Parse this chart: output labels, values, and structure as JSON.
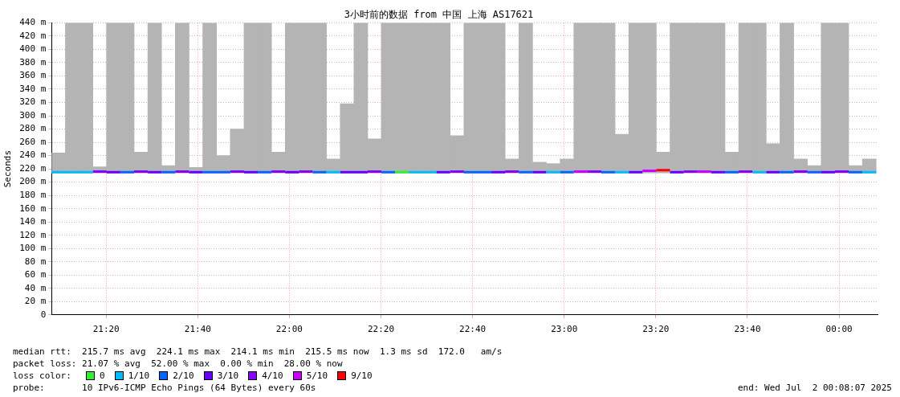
{
  "chart_data": {
    "type": "bar",
    "title": "3小时前的数据 from 中国 上海 AS17621",
    "ylabel": "Seconds",
    "xlim": [
      21.135,
      24.14
    ],
    "xticks": [
      {
        "value": 21.3333,
        "label": "21:20"
      },
      {
        "value": 21.6667,
        "label": "21:40"
      },
      {
        "value": 22,
        "label": "22:00"
      },
      {
        "value": 22.3333,
        "label": "22:20"
      },
      {
        "value": 22.6667,
        "label": "22:40"
      },
      {
        "value": 23,
        "label": "23:00"
      },
      {
        "value": 23.3333,
        "label": "23:20"
      },
      {
        "value": 23.6667,
        "label": "23:40"
      },
      {
        "value": 24,
        "label": "00:00"
      }
    ],
    "ylim": [
      0,
      440
    ],
    "yticks": [
      0,
      {
        "value": 20,
        "label": "20 m"
      },
      {
        "value": 40,
        "label": "40 m"
      },
      {
        "value": 60,
        "label": "60 m"
      },
      {
        "value": 80,
        "label": "80 m"
      },
      {
        "value": 100,
        "label": "100 m"
      },
      {
        "value": 120,
        "label": "120 m"
      },
      {
        "value": 140,
        "label": "140 m"
      },
      {
        "value": 160,
        "label": "160 m"
      },
      {
        "value": 180,
        "label": "180 m"
      },
      {
        "value": 200,
        "label": "200 m"
      },
      {
        "value": 220,
        "label": "220 m"
      },
      {
        "value": 240,
        "label": "240 m"
      },
      {
        "value": 260,
        "label": "260 m"
      },
      {
        "value": 280,
        "label": "280 m"
      },
      {
        "value": 300,
        "label": "300 m"
      },
      {
        "value": 320,
        "label": "320 m"
      },
      {
        "value": 340,
        "label": "340 m"
      },
      {
        "value": 360,
        "label": "360 m"
      },
      {
        "value": 380,
        "label": "380 m"
      },
      {
        "value": 400,
        "label": "400 m"
      },
      {
        "value": 420,
        "label": "420 m"
      },
      {
        "value": 440,
        "label": "440 m"
      }
    ],
    "grid": true,
    "legend": "bottom",
    "legend_title": "loss color:",
    "series": [
      {
        "color": "#b4b4b4",
        "x": [
          21.16,
          21.21,
          21.26,
          21.31,
          21.36,
          21.41,
          21.46,
          21.51,
          21.56,
          21.61,
          21.66,
          21.71,
          21.76,
          21.81,
          21.86,
          21.91,
          21.96,
          22.01,
          22.06,
          22.11,
          22.16,
          22.21,
          22.26,
          22.31,
          22.36,
          22.41,
          22.46,
          22.51,
          22.56,
          22.61,
          22.66,
          22.71,
          22.76,
          22.81,
          22.86,
          22.91,
          22.96,
          23.01,
          23.06,
          23.11,
          23.16,
          23.21,
          23.26,
          23.31,
          23.36,
          23.41,
          23.46,
          23.51,
          23.56,
          23.61,
          23.66,
          23.71,
          23.76,
          23.81,
          23.86,
          23.91,
          23.96,
          24.01,
          24.06,
          24.11
        ],
        "base": [
          214,
          214,
          214,
          214,
          214,
          214,
          214,
          214,
          214,
          214,
          214,
          214,
          214,
          214,
          214,
          214,
          214,
          214,
          214,
          214,
          214,
          214,
          214,
          214,
          214,
          214,
          214,
          214,
          214,
          214,
          214,
          214,
          214,
          214,
          214,
          214,
          214,
          214,
          214,
          214,
          214,
          214,
          214,
          214,
          214,
          214,
          214,
          214,
          214,
          214,
          214,
          214,
          214,
          214,
          214,
          214,
          214,
          214,
          214,
          214
        ],
        "values": [
          30,
          226,
          226,
          9,
          226,
          226,
          31,
          226,
          11,
          226,
          8,
          226,
          26,
          66,
          226,
          226,
          31,
          226,
          226,
          226,
          21,
          104,
          226,
          51,
          226,
          226,
          226,
          226,
          226,
          56,
          226,
          226,
          226,
          21,
          226,
          16,
          14,
          21,
          226,
          226,
          226,
          58,
          226,
          226,
          31,
          226,
          226,
          226,
          226,
          31,
          226,
          226,
          44,
          226,
          21,
          11,
          226,
          226,
          11,
          21
        ]
      },
      {
        "type": "line",
        "name": "0",
        "color": "#33ee33",
        "x": [
          22.385,
          22.435
        ],
        "values": [
          215,
          215
        ]
      },
      {
        "type": "line",
        "name": "1/10",
        "color": "#00bbff",
        "x": [
          21.135,
          21.285,
          22.135,
          22.185,
          22.435,
          22.535,
          22.935,
          22.985,
          23.185,
          23.235,
          23.685,
          23.735,
          24.085,
          24.135
        ],
        "values": [
          215,
          215,
          215,
          215,
          215,
          215,
          215,
          215,
          215,
          215,
          215,
          215,
          215,
          215
        ]
      },
      {
        "type": "line",
        "name": "2/10",
        "color": "#0066ff",
        "x": [
          21.385,
          21.435,
          21.535,
          21.585,
          21.685,
          21.785,
          21.885,
          21.935,
          22.085,
          22.135,
          22.335,
          22.385,
          22.635,
          22.735,
          22.835,
          22.885,
          22.985,
          23.035,
          23.135,
          23.185,
          23.585,
          23.635,
          23.785,
          23.835,
          23.885,
          23.935,
          24.035,
          24.085
        ],
        "values": [
          215,
          215,
          215,
          215,
          215,
          215,
          215,
          215,
          215,
          215,
          215,
          215,
          215,
          215,
          215,
          215,
          215,
          215,
          215,
          215,
          215,
          215,
          215,
          215,
          215,
          215,
          215,
          215
        ]
      },
      {
        "type": "line",
        "name": "3/10",
        "color": "#6600ff",
        "x": [
          21.335,
          21.385,
          21.485,
          21.535,
          21.635,
          21.685,
          21.835,
          21.885,
          21.985,
          22.035,
          22.185,
          22.285,
          22.535,
          22.585,
          22.735,
          22.785,
          22.885,
          22.935,
          23.235,
          23.285,
          23.385,
          23.435,
          23.535,
          23.585,
          23.735,
          23.785,
          23.935,
          23.985
        ],
        "values": [
          215,
          215,
          215,
          215,
          215,
          215,
          215,
          215,
          215,
          215,
          215,
          215,
          215,
          215,
          215,
          215,
          215,
          215,
          215,
          215,
          215,
          215,
          215,
          215,
          215,
          215,
          215,
          215
        ]
      },
      {
        "type": "line",
        "name": "4/10",
        "color": "#8800ff",
        "x": [
          21.285,
          21.335,
          21.435,
          21.485,
          21.585,
          21.635,
          21.785,
          21.835,
          21.935,
          21.985,
          22.035,
          22.085,
          22.285,
          22.335,
          22.585,
          22.635,
          22.785,
          22.835,
          23.085,
          23.135,
          23.435,
          23.485,
          23.635,
          23.685,
          23.835,
          23.885,
          23.985,
          24.035
        ],
        "values": [
          216,
          216,
          216,
          216,
          216,
          216,
          216,
          216,
          216,
          216,
          216,
          216,
          216,
          216,
          216,
          216,
          216,
          216,
          216,
          216,
          216,
          216,
          216,
          216,
          216,
          216,
          216,
          216
        ]
      },
      {
        "type": "line",
        "name": "5/10",
        "color": "#cc00ff",
        "x": [
          23.035,
          23.085,
          23.285,
          23.335,
          23.485,
          23.535
        ],
        "values": [
          216,
          216,
          217,
          217,
          216,
          216
        ]
      },
      {
        "type": "line",
        "name": "9/10",
        "color": "#ff0000",
        "x": [
          23.335,
          23.385
        ],
        "values": [
          218,
          218
        ]
      }
    ],
    "annotations": [
      "median rtt:  215.7 ms avg  224.1 ms max  214.1 ms min  215.5 ms now  1.3 ms sd  172.0   am/s",
      "packet loss: 21.07 % avg  52.00 % max  0.00 % min  28.00 % now",
      "probe:       10 IPv6-ICMP Echo Pings (64 Bytes) every 60s",
      "end: Wed Jul  2 00:08:07 2025"
    ]
  }
}
